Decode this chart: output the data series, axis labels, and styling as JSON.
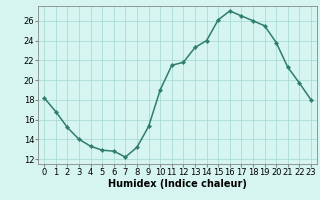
{
  "x": [
    0,
    1,
    2,
    3,
    4,
    5,
    6,
    7,
    8,
    9,
    10,
    11,
    12,
    13,
    14,
    15,
    16,
    17,
    18,
    19,
    20,
    21,
    22,
    23
  ],
  "y": [
    18.2,
    16.8,
    15.2,
    14.0,
    13.3,
    12.9,
    12.8,
    12.2,
    13.2,
    15.3,
    19.0,
    21.5,
    21.8,
    23.3,
    24.0,
    26.1,
    27.0,
    26.5,
    26.0,
    25.5,
    23.8,
    21.3,
    19.7,
    18.0
  ],
  "line_color": "#2e7d6e",
  "marker": "D",
  "marker_size": 2.2,
  "bg_color": "#d6f5f0",
  "grid_color": "#a0d8cf",
  "xlabel": "Humidex (Indice chaleur)",
  "ylabel": "",
  "ylim": [
    11.5,
    27.5
  ],
  "yticks": [
    12,
    14,
    16,
    18,
    20,
    22,
    24,
    26
  ],
  "xlim": [
    -0.5,
    23.5
  ],
  "xticks": [
    0,
    1,
    2,
    3,
    4,
    5,
    6,
    7,
    8,
    9,
    10,
    11,
    12,
    13,
    14,
    15,
    16,
    17,
    18,
    19,
    20,
    21,
    22,
    23
  ],
  "xlabel_fontsize": 7,
  "tick_fontsize": 6,
  "line_width": 1.1
}
